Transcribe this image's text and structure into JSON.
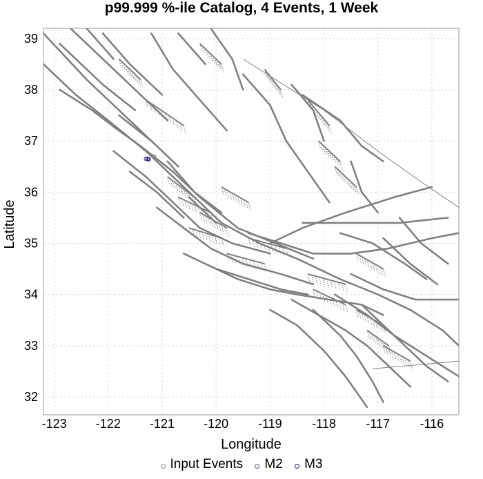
{
  "title": "p99.999 %-ile Catalog, 4 Events, 1 Week",
  "chart_data": {
    "type": "map",
    "xlabel": "Longitude",
    "ylabel": "Latitude",
    "xlim": [
      -123.2,
      -115.5
    ],
    "ylim": [
      31.65,
      39.2
    ],
    "xticks": [
      -123,
      -122,
      -121,
      -120,
      -119,
      -118,
      -117,
      -116
    ],
    "yticks": [
      32,
      33,
      34,
      35,
      36,
      37,
      38,
      39
    ],
    "grid": true,
    "events": [
      {
        "series": "Input Events",
        "lon": -121.15,
        "lat": 36.7
      },
      {
        "series": "M2",
        "lon": -121.3,
        "lat": 36.65
      },
      {
        "series": "M3",
        "lon": -121.27,
        "lat": 36.65
      },
      {
        "series": "M3",
        "lon": -121.25,
        "lat": 36.64
      }
    ],
    "legend": {
      "placement": "bottom",
      "items": [
        {
          "label": "Input Events",
          "color": "#888888"
        },
        {
          "label": "M2",
          "color": "#4b4bb0"
        },
        {
          "label": "M3",
          "color": "#1c1c8c"
        }
      ]
    },
    "fault_color": "#808080",
    "fault_traces": [
      [
        [
          -123.2,
          38.5
        ],
        [
          -122.6,
          37.9
        ],
        [
          -122.0,
          37.4
        ],
        [
          -121.3,
          36.8
        ],
        [
          -120.6,
          36.1
        ],
        [
          -119.9,
          35.4
        ],
        [
          -119.2,
          35.0
        ],
        [
          -118.5,
          34.7
        ],
        [
          -117.7,
          34.3
        ],
        [
          -117.0,
          34.0
        ],
        [
          -116.4,
          33.7
        ],
        [
          -115.8,
          33.3
        ],
        [
          -115.5,
          33.0
        ]
      ],
      [
        [
          -123.2,
          39.1
        ],
        [
          -122.4,
          38.2
        ],
        [
          -121.7,
          37.5
        ],
        [
          -121.1,
          36.9
        ]
      ],
      [
        [
          -122.9,
          38.9
        ],
        [
          -122.1,
          38.1
        ],
        [
          -121.5,
          37.6
        ]
      ],
      [
        [
          -122.7,
          39.2
        ],
        [
          -122.0,
          38.5
        ],
        [
          -121.4,
          37.9
        ],
        [
          -120.9,
          37.4
        ]
      ],
      [
        [
          -122.4,
          39.2
        ],
        [
          -121.9,
          38.6
        ]
      ],
      [
        [
          -122.1,
          39.1
        ],
        [
          -121.6,
          38.5
        ],
        [
          -121.0,
          37.9
        ]
      ],
      [
        [
          -121.2,
          39.1
        ],
        [
          -120.8,
          38.4
        ],
        [
          -120.3,
          37.8
        ],
        [
          -119.8,
          37.2
        ]
      ],
      [
        [
          -120.7,
          39.1
        ],
        [
          -120.2,
          38.5
        ]
      ],
      [
        [
          -120.1,
          39.2
        ],
        [
          -119.7,
          38.6
        ],
        [
          -119.5,
          38.0
        ]
      ],
      [
        [
          -119.5,
          38.3
        ],
        [
          -119.0,
          37.7
        ],
        [
          -118.7,
          37.0
        ],
        [
          -118.3,
          36.4
        ],
        [
          -117.9,
          35.8
        ]
      ],
      [
        [
          -118.6,
          38.1
        ],
        [
          -118.2,
          37.6
        ],
        [
          -118.0,
          37.0
        ]
      ],
      [
        [
          -118.4,
          37.9
        ],
        [
          -117.7,
          37.4
        ],
        [
          -117.3,
          36.9
        ],
        [
          -116.9,
          36.6
        ]
      ],
      [
        [
          -117.5,
          36.6
        ],
        [
          -117.3,
          36.0
        ],
        [
          -117.0,
          35.6
        ]
      ],
      [
        [
          -122.9,
          38.0
        ],
        [
          -122.3,
          37.6
        ],
        [
          -121.8,
          37.2
        ],
        [
          -121.4,
          36.9
        ],
        [
          -120.8,
          36.4
        ],
        [
          -120.3,
          35.9
        ],
        [
          -119.6,
          35.3
        ],
        [
          -118.9,
          35.0
        ],
        [
          -118.2,
          34.7
        ]
      ],
      [
        [
          -121.9,
          36.8
        ],
        [
          -121.3,
          36.3
        ],
        [
          -120.8,
          35.8
        ],
        [
          -120.3,
          35.3
        ],
        [
          -119.7,
          35.0
        ],
        [
          -119.0,
          34.8
        ]
      ],
      [
        [
          -121.1,
          35.7
        ],
        [
          -120.6,
          35.3
        ],
        [
          -120.1,
          34.9
        ],
        [
          -119.5,
          34.6
        ],
        [
          -118.8,
          34.4
        ],
        [
          -118.2,
          34.2
        ]
      ],
      [
        [
          -120.6,
          34.8
        ],
        [
          -120.0,
          34.5
        ],
        [
          -119.4,
          34.3
        ],
        [
          -118.8,
          34.1
        ],
        [
          -118.3,
          34.0
        ]
      ],
      [
        [
          -120.2,
          34.6
        ],
        [
          -119.6,
          34.3
        ],
        [
          -119.0,
          34.1
        ],
        [
          -118.5,
          34.0
        ],
        [
          -117.9,
          33.9
        ],
        [
          -117.3,
          33.8
        ],
        [
          -116.9,
          33.6
        ]
      ],
      [
        [
          -119.4,
          35.2
        ],
        [
          -118.8,
          35.0
        ],
        [
          -118.2,
          34.8
        ],
        [
          -117.5,
          34.8
        ],
        [
          -116.8,
          34.9
        ],
        [
          -116.0,
          35.1
        ],
        [
          -115.5,
          35.2
        ]
      ],
      [
        [
          -119.0,
          35.0
        ],
        [
          -118.4,
          35.3
        ],
        [
          -117.6,
          35.6
        ],
        [
          -116.7,
          35.9
        ],
        [
          -116.0,
          36.1
        ]
      ],
      [
        [
          -118.4,
          35.4
        ],
        [
          -117.5,
          35.4
        ],
        [
          -116.6,
          35.4
        ],
        [
          -115.7,
          35.5
        ]
      ],
      [
        [
          -117.7,
          35.2
        ],
        [
          -117.1,
          35.0
        ],
        [
          -116.5,
          34.6
        ],
        [
          -116.1,
          34.3
        ]
      ],
      [
        [
          -116.9,
          35.1
        ],
        [
          -116.4,
          34.6
        ],
        [
          -115.9,
          34.2
        ]
      ],
      [
        [
          -116.6,
          35.5
        ],
        [
          -116.2,
          35.0
        ],
        [
          -115.7,
          34.6
        ]
      ],
      [
        [
          -117.5,
          34.4
        ],
        [
          -116.9,
          34.1
        ],
        [
          -116.3,
          33.9
        ],
        [
          -115.5,
          33.9
        ]
      ],
      [
        [
          -118.6,
          33.9
        ],
        [
          -118.1,
          33.6
        ],
        [
          -117.6,
          33.3
        ],
        [
          -117.2,
          33.0
        ],
        [
          -116.8,
          32.6
        ],
        [
          -116.4,
          32.2
        ]
      ],
      [
        [
          -118.2,
          33.7
        ],
        [
          -117.7,
          33.2
        ],
        [
          -117.4,
          32.8
        ],
        [
          -117.1,
          32.3
        ],
        [
          -116.9,
          31.9
        ]
      ],
      [
        [
          -117.3,
          33.8
        ],
        [
          -116.9,
          33.4
        ],
        [
          -116.5,
          33.0
        ],
        [
          -116.1,
          32.6
        ],
        [
          -115.7,
          32.3
        ]
      ],
      [
        [
          -117.8,
          34.0
        ],
        [
          -117.2,
          33.6
        ],
        [
          -116.7,
          33.2
        ],
        [
          -116.1,
          32.8
        ],
        [
          -115.5,
          32.4
        ]
      ],
      [
        [
          -119.0,
          33.7
        ],
        [
          -118.5,
          33.4
        ],
        [
          -118.0,
          32.9
        ],
        [
          -117.6,
          32.4
        ],
        [
          -117.2,
          31.8
        ]
      ],
      [
        [
          -121.8,
          37.5
        ],
        [
          -121.2,
          37.0
        ],
        [
          -120.7,
          36.5
        ]
      ],
      [
        [
          -120.9,
          36.6
        ],
        [
          -120.4,
          36.0
        ],
        [
          -119.9,
          35.6
        ]
      ],
      [
        [
          -121.6,
          36.4
        ],
        [
          -121.1,
          36.0
        ],
        [
          -120.6,
          35.5
        ]
      ],
      [
        [
          -120.5,
          35.9
        ],
        [
          -120.0,
          35.4
        ]
      ]
    ],
    "hatched_zones": [
      [
        [
          -121.3,
          37.8
        ],
        [
          -120.6,
          37.3
        ]
      ],
      [
        [
          -120.9,
          36.3
        ],
        [
          -120.4,
          35.9
        ]
      ],
      [
        [
          -120.7,
          35.9
        ],
        [
          -120.1,
          35.6
        ]
      ],
      [
        [
          -119.9,
          36.1
        ],
        [
          -119.4,
          35.8
        ]
      ],
      [
        [
          -120.3,
          35.6
        ],
        [
          -119.8,
          35.3
        ]
      ],
      [
        [
          -120.5,
          35.3
        ],
        [
          -119.9,
          35.1
        ]
      ],
      [
        [
          -119.4,
          35.1
        ],
        [
          -118.7,
          34.9
        ]
      ],
      [
        [
          -119.8,
          34.8
        ],
        [
          -119.1,
          34.6
        ]
      ],
      [
        [
          -118.3,
          34.4
        ],
        [
          -117.6,
          34.2
        ]
      ],
      [
        [
          -118.2,
          34.1
        ],
        [
          -117.6,
          33.8
        ]
      ],
      [
        [
          -117.4,
          33.7
        ],
        [
          -116.9,
          33.4
        ]
      ],
      [
        [
          -117.2,
          33.3
        ],
        [
          -116.8,
          33.0
        ]
      ],
      [
        [
          -116.9,
          33.0
        ],
        [
          -116.4,
          32.7
        ]
      ],
      [
        [
          -118.3,
          37.8
        ],
        [
          -117.9,
          37.3
        ]
      ],
      [
        [
          -118.1,
          37.0
        ],
        [
          -117.7,
          36.6
        ]
      ],
      [
        [
          -117.8,
          36.5
        ],
        [
          -117.4,
          36.1
        ]
      ],
      [
        [
          -119.1,
          38.4
        ],
        [
          -118.8,
          38.0
        ]
      ],
      [
        [
          -120.3,
          38.9
        ],
        [
          -119.9,
          38.5
        ]
      ],
      [
        [
          -121.8,
          38.6
        ],
        [
          -121.4,
          38.2
        ]
      ],
      [
        [
          -117.4,
          34.8
        ],
        [
          -116.9,
          34.5
        ]
      ]
    ],
    "boundary_lines": [
      [
        [
          -119.5,
          38.6
        ],
        [
          -118.0,
          37.6
        ],
        [
          -117.0,
          36.8
        ],
        [
          -116.2,
          36.2
        ],
        [
          -115.5,
          35.7
        ]
      ],
      [
        [
          -117.1,
          32.55
        ],
        [
          -116.0,
          32.65
        ],
        [
          -115.5,
          32.7
        ]
      ]
    ]
  }
}
